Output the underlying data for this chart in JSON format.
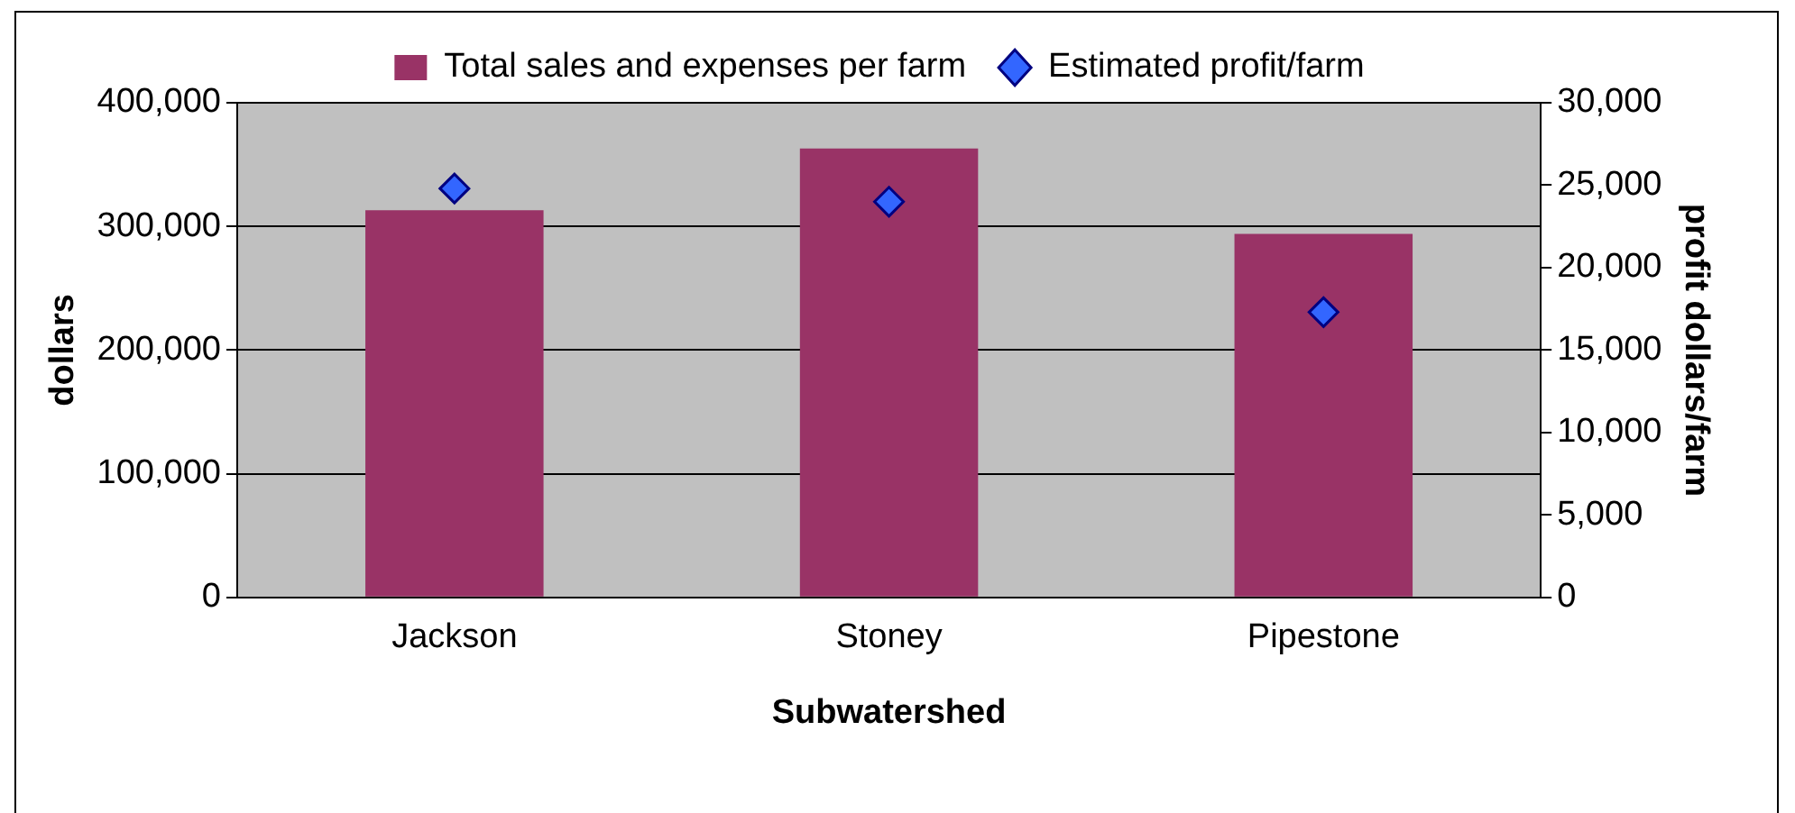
{
  "chart_data": {
    "type": "bar",
    "xlabel": "Subwatershed",
    "ylabel": "dollars",
    "y2label": "profit dollars/farm",
    "categories": [
      "Jackson",
      "Stoney",
      "Pipestone"
    ],
    "series": [
      {
        "name": "Total sales and expenses per farm",
        "color": "#993366",
        "values": [
          313000,
          363000,
          294000
        ]
      },
      {
        "name": "Estimated profit/farm",
        "type": "scatter",
        "axis": "y2",
        "marker": "diamond",
        "color": "#3366ff",
        "x": [
          "Jackson",
          "Stoney",
          "Pipestone"
        ],
        "values": [
          24800,
          24000,
          17300
        ]
      }
    ],
    "ylim": [
      0,
      400000
    ],
    "yticks": [
      0,
      {
        "value": 100000,
        "label": "100,000"
      },
      {
        "value": 200000,
        "label": "200,000"
      },
      {
        "value": 300000,
        "label": "300,000"
      },
      {
        "value": 400000,
        "label": "400,000"
      }
    ],
    "y2lim": [
      0,
      30000
    ],
    "y2ticks": [
      0,
      {
        "value": 5000,
        "label": "5,000"
      },
      {
        "value": 10000,
        "label": "10,000"
      },
      {
        "value": 15000,
        "label": "15,000"
      },
      {
        "value": 20000,
        "label": "20,000"
      },
      {
        "value": 25000,
        "label": "25,000"
      },
      {
        "value": 30000,
        "label": "30,000"
      }
    ],
    "grid": "y",
    "legend": "top"
  }
}
